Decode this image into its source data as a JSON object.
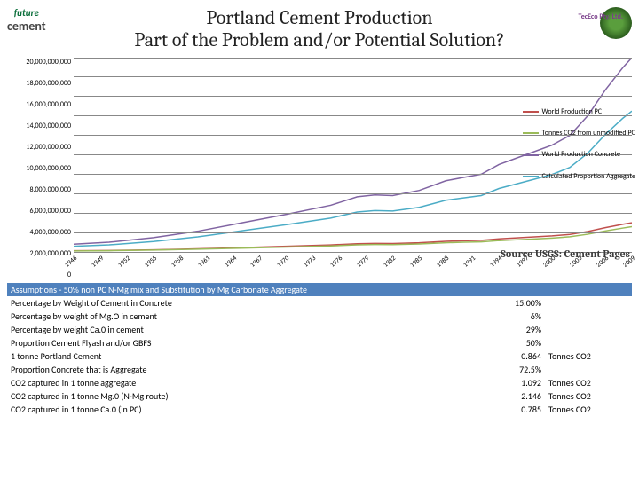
{
  "title_line1": "Portland Cement Production",
  "title_line2": "Part of the Problem and/or Potential Solution?",
  "logo_left_top": "future",
  "logo_left_bottom": "cement",
  "logo_right_text": "TecEco Pty. Ltd.",
  "source_text": "Source USGS: Cement Pages",
  "chart": {
    "ylim": [
      0,
      20000000000
    ],
    "y_ticks": [
      "20,000,000,000",
      "18,000,000,000",
      "16,000,000,000",
      "14,000,000,000",
      "12,000,000,000",
      "10,000,000,000",
      "8,000,000,000",
      "6,000,000,000",
      "4,000,000,000",
      "2,000,000,000",
      "0"
    ],
    "x_labels": [
      "1946",
      "1949",
      "1952",
      "1955",
      "1958",
      "1961",
      "1964",
      "1967",
      "1970",
      "1973",
      "1976",
      "1979",
      "1982",
      "1985",
      "1988",
      "1991",
      "1994",
      "1997",
      "2000",
      "2003",
      "2006",
      "2009"
    ],
    "x_start": 1946,
    "x_end": 2009,
    "grid_color": "#888888",
    "background": "#ffffff",
    "series": [
      {
        "name": "World Production PC",
        "color": "#c0504d",
        "width": 1.5,
        "points": [
          [
            1946,
            0.12
          ],
          [
            1950,
            0.15
          ],
          [
            1955,
            0.22
          ],
          [
            1960,
            0.32
          ],
          [
            1965,
            0.45
          ],
          [
            1970,
            0.58
          ],
          [
            1975,
            0.72
          ],
          [
            1978,
            0.85
          ],
          [
            1980,
            0.88
          ],
          [
            1982,
            0.87
          ],
          [
            1985,
            0.95
          ],
          [
            1988,
            1.1
          ],
          [
            1990,
            1.15
          ],
          [
            1992,
            1.2
          ],
          [
            1994,
            1.35
          ],
          [
            1996,
            1.45
          ],
          [
            1998,
            1.55
          ],
          [
            2000,
            1.65
          ],
          [
            2002,
            1.8
          ],
          [
            2004,
            2.1
          ],
          [
            2006,
            2.5
          ],
          [
            2008,
            2.85
          ],
          [
            2009,
            3.0
          ]
        ]
      },
      {
        "name": "Tonnes CO2 from unmodified PC",
        "color": "#9bbb59",
        "width": 1.5,
        "points": [
          [
            1946,
            0.1
          ],
          [
            1950,
            0.13
          ],
          [
            1955,
            0.19
          ],
          [
            1960,
            0.28
          ],
          [
            1965,
            0.39
          ],
          [
            1970,
            0.5
          ],
          [
            1975,
            0.62
          ],
          [
            1978,
            0.73
          ],
          [
            1980,
            0.76
          ],
          [
            1982,
            0.75
          ],
          [
            1985,
            0.82
          ],
          [
            1988,
            0.95
          ],
          [
            1990,
            1.0
          ],
          [
            1992,
            1.04
          ],
          [
            1994,
            1.17
          ],
          [
            1996,
            1.25
          ],
          [
            1998,
            1.34
          ],
          [
            2000,
            1.43
          ],
          [
            2002,
            1.56
          ],
          [
            2004,
            1.82
          ],
          [
            2006,
            2.16
          ],
          [
            2008,
            2.46
          ],
          [
            2009,
            2.6
          ]
        ]
      },
      {
        "name": "World Production Concrete",
        "color": "#8064a2",
        "width": 1.5,
        "points": [
          [
            1946,
            0.8
          ],
          [
            1950,
            1.0
          ],
          [
            1955,
            1.47
          ],
          [
            1960,
            2.13
          ],
          [
            1965,
            3.0
          ],
          [
            1970,
            3.87
          ],
          [
            1975,
            4.8
          ],
          [
            1978,
            5.67
          ],
          [
            1980,
            5.87
          ],
          [
            1982,
            5.8
          ],
          [
            1985,
            6.33
          ],
          [
            1988,
            7.33
          ],
          [
            1990,
            7.67
          ],
          [
            1992,
            8.0
          ],
          [
            1994,
            9.0
          ],
          [
            1996,
            9.67
          ],
          [
            1998,
            10.33
          ],
          [
            2000,
            11.0
          ],
          [
            2002,
            12.0
          ],
          [
            2004,
            14.0
          ],
          [
            2006,
            16.67
          ],
          [
            2008,
            19.0
          ],
          [
            2009,
            20.0
          ]
        ]
      },
      {
        "name": "Calculated Proportion Aggregate",
        "color": "#4bacc6",
        "width": 1.5,
        "points": [
          [
            1946,
            0.58
          ],
          [
            1950,
            0.73
          ],
          [
            1955,
            1.07
          ],
          [
            1960,
            1.55
          ],
          [
            1965,
            2.18
          ],
          [
            1970,
            2.81
          ],
          [
            1975,
            3.48
          ],
          [
            1978,
            4.11
          ],
          [
            1980,
            4.26
          ],
          [
            1982,
            4.21
          ],
          [
            1985,
            4.59
          ],
          [
            1988,
            5.32
          ],
          [
            1990,
            5.56
          ],
          [
            1992,
            5.8
          ],
          [
            1994,
            6.53
          ],
          [
            1996,
            7.01
          ],
          [
            1998,
            7.49
          ],
          [
            2000,
            7.98
          ],
          [
            2002,
            8.7
          ],
          [
            2004,
            10.15
          ],
          [
            2006,
            12.09
          ],
          [
            2008,
            13.78
          ],
          [
            2009,
            14.5
          ]
        ]
      }
    ]
  },
  "table": {
    "header": "Assumptions - 50% non PC N-Mg mix and Substitution by Mg Carbonate Aggregate",
    "rows": [
      {
        "label": "Percentage by Weight of Cement in Concrete",
        "value": "15.00%",
        "unit": ""
      },
      {
        "label": "Percentage by weight of Mg.O in cement",
        "value": "6%",
        "unit": ""
      },
      {
        "label": "Percentage by weight Ca.0 in cement",
        "value": "29%",
        "unit": ""
      },
      {
        "label": "Proportion Cement Flyash and/or GBFS",
        "value": "50%",
        "unit": ""
      },
      {
        "label": "1 tonne Portland Cement",
        "value": "0.864",
        "unit": "Tonnes CO2"
      },
      {
        "label": "Proportion Concrete that is Aggregate",
        "value": "72.5%",
        "unit": ""
      },
      {
        "label": "CO2 captured in 1 tonne aggregate",
        "value": "1.092",
        "unit": "Tonnes CO2"
      },
      {
        "label": "CO2 captured in 1 tonne Mg.0 (N-Mg route)",
        "value": "2.146",
        "unit": "Tonnes CO2"
      },
      {
        "label": "CO2 captured in 1 tonne Ca.0 (in PC)",
        "value": "0.785",
        "unit": "Tonnes CO2"
      }
    ]
  }
}
